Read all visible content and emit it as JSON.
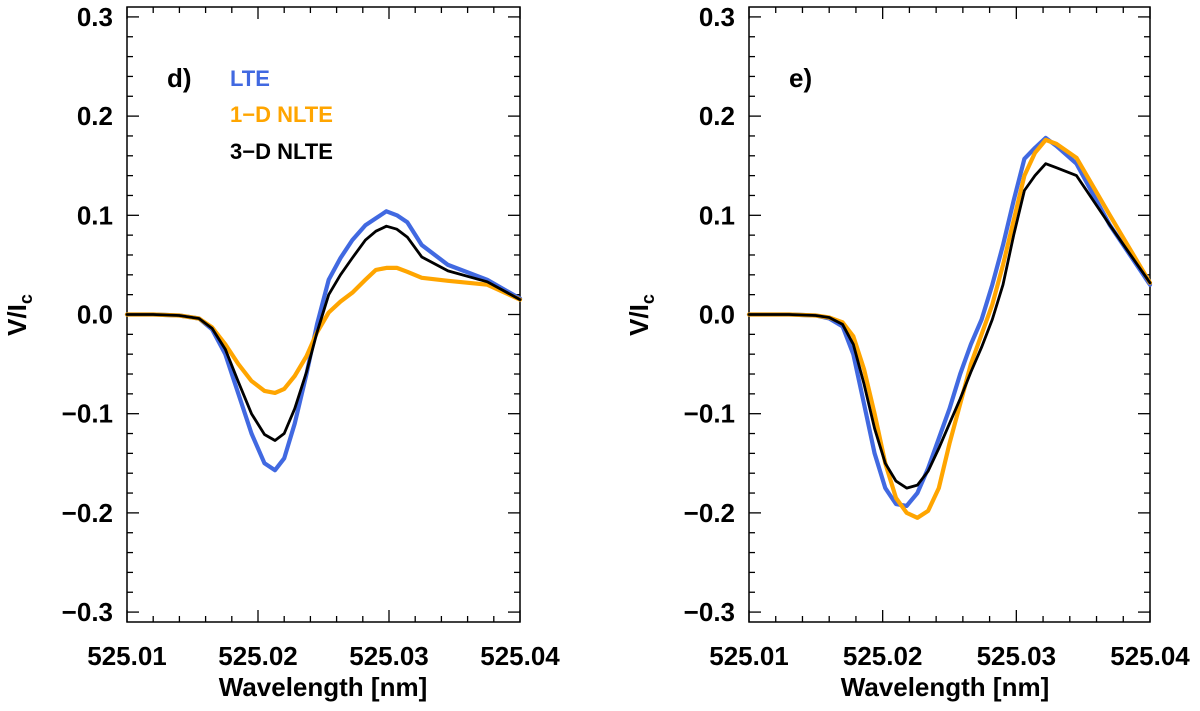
{
  "colors": {
    "lte": "#4169e1",
    "nlte1d": "#ffa500",
    "nlte3d": "#000000",
    "axis": "#000000"
  },
  "chart_data": [
    {
      "type": "line",
      "panel_label": "d)",
      "xlabel": "Wavelength [nm]",
      "ylabel_main": "V/I",
      "ylabel_sub": "c",
      "xlim": [
        525.01,
        525.04
      ],
      "ylim": [
        -0.31,
        0.31
      ],
      "x_ticks": [
        "525.01",
        "525.02",
        "525.03",
        "525.04"
      ],
      "x_tick_values": [
        525.01,
        525.02,
        525.03,
        525.04
      ],
      "y_ticks": [
        "0.3",
        "0.2",
        "0.1",
        "0.0",
        "−0.1",
        "−0.2",
        "−0.3"
      ],
      "y_tick_values": [
        0.3,
        0.2,
        0.1,
        0.0,
        -0.1,
        -0.2,
        -0.3
      ],
      "legend": [
        "LTE",
        "1−D NLTE",
        "3−D NLTE"
      ],
      "series": [
        {
          "name": "LTE",
          "color": "#4169e1",
          "width": 4.2,
          "x": [
            525.01,
            525.012,
            525.014,
            525.0155,
            525.0165,
            525.0175,
            525.0185,
            525.0195,
            525.0205,
            525.0213,
            525.022,
            525.0228,
            525.0237,
            525.0245,
            525.0254,
            525.0263,
            525.0272,
            525.0282,
            525.029,
            525.0298,
            525.0306,
            525.0314,
            525.0325,
            525.0345,
            525.0375,
            525.04
          ],
          "y": [
            0.0,
            0.0,
            -0.001,
            -0.004,
            -0.015,
            -0.04,
            -0.08,
            -0.12,
            -0.15,
            -0.157,
            -0.145,
            -0.11,
            -0.06,
            -0.01,
            0.035,
            0.057,
            0.075,
            0.09,
            0.097,
            0.104,
            0.1,
            0.093,
            0.07,
            0.05,
            0.035,
            0.016
          ]
        },
        {
          "name": "1−D NLTE",
          "color": "#ffa500",
          "width": 4.2,
          "x": [
            525.01,
            525.012,
            525.014,
            525.0155,
            525.0165,
            525.0175,
            525.0185,
            525.0195,
            525.0205,
            525.0213,
            525.022,
            525.0228,
            525.0237,
            525.0245,
            525.0254,
            525.0263,
            525.0272,
            525.0282,
            525.029,
            525.0298,
            525.0306,
            525.0314,
            525.0325,
            525.0345,
            525.0375,
            525.04
          ],
          "y": [
            0.0,
            0.0,
            -0.001,
            -0.004,
            -0.013,
            -0.03,
            -0.05,
            -0.067,
            -0.077,
            -0.079,
            -0.075,
            -0.062,
            -0.042,
            -0.018,
            0.002,
            0.013,
            0.022,
            0.035,
            0.045,
            0.047,
            0.047,
            0.043,
            0.037,
            0.034,
            0.03,
            0.015
          ]
        },
        {
          "name": "3−D NLTE",
          "color": "#000000",
          "width": 2.8,
          "x": [
            525.01,
            525.012,
            525.014,
            525.0155,
            525.0165,
            525.0175,
            525.0185,
            525.0195,
            525.0205,
            525.0213,
            525.022,
            525.0228,
            525.0237,
            525.0245,
            525.0254,
            525.0263,
            525.0272,
            525.0282,
            525.029,
            525.0298,
            525.0306,
            525.0314,
            525.0325,
            525.0345,
            525.0375,
            525.04
          ],
          "y": [
            0.0,
            0.0,
            -0.001,
            -0.004,
            -0.014,
            -0.035,
            -0.068,
            -0.1,
            -0.121,
            -0.127,
            -0.12,
            -0.095,
            -0.058,
            -0.018,
            0.02,
            0.04,
            0.057,
            0.075,
            0.084,
            0.089,
            0.086,
            0.078,
            0.058,
            0.044,
            0.033,
            0.015
          ]
        }
      ]
    },
    {
      "type": "line",
      "panel_label": "e)",
      "xlabel": "Wavelength [nm]",
      "ylabel_main": "V/I",
      "ylabel_sub": "c",
      "xlim": [
        525.01,
        525.04
      ],
      "ylim": [
        -0.31,
        0.31
      ],
      "x_ticks": [
        "525.01",
        "525.02",
        "525.03",
        "525.04"
      ],
      "x_tick_values": [
        525.01,
        525.02,
        525.03,
        525.04
      ],
      "y_ticks": [
        "0.3",
        "0.2",
        "0.1",
        "0.0",
        "−0.1",
        "−0.2",
        "−0.3"
      ],
      "y_tick_values": [
        0.3,
        0.2,
        0.1,
        0.0,
        -0.1,
        -0.2,
        -0.3
      ],
      "series": [
        {
          "name": "LTE",
          "color": "#4169e1",
          "width": 4.2,
          "x": [
            525.01,
            525.013,
            525.015,
            525.016,
            525.017,
            525.0178,
            525.0186,
            525.0194,
            525.0202,
            525.021,
            525.0218,
            525.0226,
            525.0234,
            525.0242,
            525.025,
            525.0258,
            525.0266,
            525.0274,
            525.0282,
            525.029,
            525.0298,
            525.0306,
            525.0314,
            525.0322,
            525.033,
            525.0345,
            525.037,
            525.04
          ],
          "y": [
            0.0,
            0.0,
            -0.001,
            -0.004,
            -0.012,
            -0.04,
            -0.09,
            -0.14,
            -0.175,
            -0.191,
            -0.193,
            -0.18,
            -0.155,
            -0.125,
            -0.095,
            -0.06,
            -0.03,
            -0.005,
            0.03,
            0.07,
            0.115,
            0.157,
            0.168,
            0.178,
            0.17,
            0.152,
            0.09,
            0.03
          ]
        },
        {
          "name": "1−D NLTE",
          "color": "#ffa500",
          "width": 4.2,
          "x": [
            525.01,
            525.013,
            525.015,
            525.016,
            525.017,
            525.0178,
            525.0186,
            525.0194,
            525.0202,
            525.021,
            525.0218,
            525.0226,
            525.0234,
            525.0242,
            525.025,
            525.0258,
            525.0266,
            525.0274,
            525.0282,
            525.029,
            525.0298,
            525.0306,
            525.0314,
            525.0322,
            525.033,
            525.0345,
            525.037,
            525.04
          ],
          "y": [
            0.0,
            0.0,
            -0.001,
            -0.003,
            -0.008,
            -0.022,
            -0.055,
            -0.1,
            -0.15,
            -0.185,
            -0.2,
            -0.205,
            -0.198,
            -0.175,
            -0.13,
            -0.09,
            -0.05,
            -0.02,
            0.01,
            0.05,
            0.095,
            0.14,
            0.163,
            0.176,
            0.172,
            0.158,
            0.1,
            0.032
          ]
        },
        {
          "name": "3−D NLTE",
          "color": "#000000",
          "width": 2.8,
          "x": [
            525.01,
            525.013,
            525.015,
            525.016,
            525.017,
            525.0178,
            525.0186,
            525.0194,
            525.0202,
            525.021,
            525.0218,
            525.0226,
            525.0234,
            525.0242,
            525.025,
            525.0258,
            525.0266,
            525.0274,
            525.0282,
            525.029,
            525.0298,
            525.0306,
            525.0314,
            525.0322,
            525.033,
            525.0345,
            525.037,
            525.04
          ],
          "y": [
            0.0,
            0.0,
            -0.001,
            -0.003,
            -0.01,
            -0.03,
            -0.07,
            -0.115,
            -0.15,
            -0.168,
            -0.175,
            -0.172,
            -0.158,
            -0.135,
            -0.11,
            -0.085,
            -0.058,
            -0.033,
            -0.005,
            0.03,
            0.08,
            0.125,
            0.14,
            0.152,
            0.148,
            0.14,
            0.09,
            0.032
          ]
        }
      ]
    }
  ]
}
